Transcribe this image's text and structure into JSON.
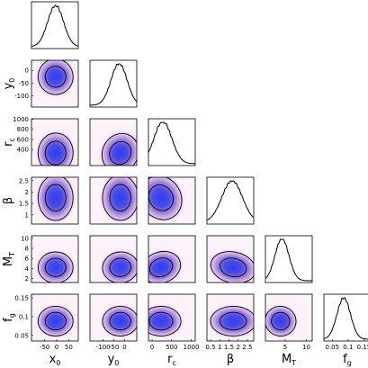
{
  "chart_data": {
    "type": "corner",
    "parameters": [
      {
        "id": "x0",
        "base": "x",
        "sub": "0",
        "ticks": [
          -50,
          0,
          50
        ],
        "tick_labels": [
          "-50",
          "0",
          "50"
        ],
        "range": [
          -90,
          75
        ],
        "mean": -5,
        "sigma": 28,
        "skew": 0
      },
      {
        "id": "y0",
        "base": "y",
        "sub": "0",
        "ticks": [
          -100,
          -50,
          0
        ],
        "tick_labels": [
          "-100",
          "-50",
          "0"
        ],
        "range": [
          -145,
          40
        ],
        "mean": -25,
        "sigma": 32,
        "skew": -0.45
      },
      {
        "id": "rc",
        "base": "r",
        "sub": "c",
        "ticks": [
          400,
          600,
          800,
          1000
        ],
        "tick_labels": [
          "400",
          "600",
          "800",
          "1000"
        ],
        "range": [
          80,
          1010
        ],
        "mean": 330,
        "sigma": 180,
        "skew": 0.6
      },
      {
        "id": "beta",
        "base": "β",
        "sub": "",
        "ticks": [
          1,
          1.5,
          2,
          2.5
        ],
        "tick_labels": [
          "1",
          "1.5",
          "2",
          "2.5"
        ],
        "range": [
          0.6,
          2.65
        ],
        "mean": 1.75,
        "sigma": 0.45,
        "skew": -0.3
      },
      {
        "id": "MT",
        "base": "M",
        "sub": "T",
        "ticks": [
          2,
          4,
          6,
          8,
          10
        ],
        "tick_labels": [
          "2",
          "4",
          "6",
          "8",
          "10"
        ],
        "range": [
          1.2,
          10.5
        ],
        "mean": 4.2,
        "sigma": 1.4,
        "skew": 0.6
      },
      {
        "id": "fg",
        "base": "f",
        "sub": "g",
        "ticks": [
          0.05,
          0.1,
          0.15
        ],
        "tick_labels": [
          "0.05",
          "0.1",
          "0.15"
        ],
        "range": [
          0.035,
          0.16
        ],
        "mean": 0.088,
        "sigma": 0.018,
        "skew": 0
      }
    ],
    "x_axis_ticks": {
      "x0": {
        "ticks": [
          -50,
          0,
          50
        ],
        "labels": [
          "-50",
          "0",
          "50"
        ]
      },
      "y0": {
        "ticks": [
          -100,
          -50,
          0
        ],
        "labels": [
          "-100",
          "-50",
          "0"
        ]
      },
      "rc": {
        "ticks": [
          0,
          500,
          1000
        ],
        "labels": [
          "0",
          "500",
          "1000"
        ]
      },
      "beta": {
        "ticks": [
          0.5,
          1,
          1.5,
          2,
          2.5
        ],
        "labels": [
          "0.5",
          "1",
          "1.5",
          "2",
          "2.5"
        ]
      },
      "MT": {
        "ticks": [
          5,
          10
        ],
        "labels": [
          "5",
          "10"
        ]
      },
      "fg": {
        "ticks": [
          0.05,
          0.1,
          0.15
        ],
        "labels": [
          "0.05",
          "0.1",
          "0.15"
        ]
      }
    },
    "correlations": {
      "y0|x0": 0.15,
      "rc|x0": -0.05,
      "rc|y0": -0.55,
      "beta|x0": 0.0,
      "beta|y0": 0.0,
      "beta|rc": 0.65,
      "MT|x0": 0.0,
      "MT|y0": 0.15,
      "MT|rc": 0.5,
      "MT|beta": -0.35,
      "fg|x0": 0.0,
      "fg|y0": 0.0,
      "fg|rc": 0.0,
      "fg|beta": 0.0,
      "fg|MT": -0.2
    },
    "contour_levels": [
      "68%",
      "95%"
    ],
    "colors": {
      "density_core": "#3838f0",
      "density_mid": "#7a5cd8",
      "density_outer": "#e8c9e6",
      "line": "#000000"
    }
  }
}
